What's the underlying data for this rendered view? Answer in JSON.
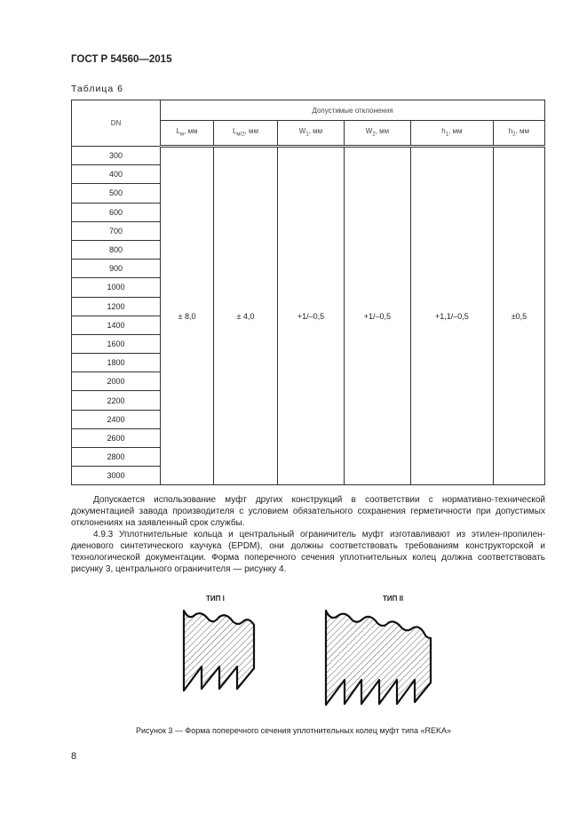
{
  "header": {
    "standard": "ГОСТ Р 54560—2015"
  },
  "table": {
    "caption": "Таблица 6",
    "dn_header": "DN",
    "group_header": "Допустимые отклонения",
    "columns": [
      {
        "symbol": "L",
        "sub": "м",
        "unit": ", мм"
      },
      {
        "symbol": "L",
        "sub": "м/2",
        "unit": ", мм"
      },
      {
        "symbol": "W",
        "sub": "1",
        "unit": ", мм"
      },
      {
        "symbol": "W",
        "sub": "2",
        "unit": ", мм"
      },
      {
        "symbol": "h",
        "sub": "1",
        "unit": ", мм"
      },
      {
        "symbol": "h",
        "sub": "2",
        "unit": ", мм"
      }
    ],
    "dn_values": [
      "300",
      "400",
      "500",
      "600",
      "700",
      "800",
      "900",
      "1000",
      "1200",
      "1400",
      "1600",
      "1800",
      "2000",
      "2200",
      "2400",
      "2600",
      "2800",
      "3000"
    ],
    "tolerances": [
      "± 8,0",
      "± 4,0",
      "+1/–0,5",
      "+1/–0,5",
      "+1,1/–0,5",
      "±0,5"
    ]
  },
  "paragraphs": [
    "Допускается использование муфт других конструкций в соответствии с нормативно-технической документацией завода производителя с условием обязательного сохранения герметичности при допустимых отклонениях на заявленный срок службы.",
    "4.9.3 Уплотнительные кольца и центральный ограничитель муфт изготавливают из этилен-пропилен-диенового синтетического каучука (EPDM), они должны соответствовать требованиям конструкторской и технологической документации. Форма поперечного сечения уплотнительных колец должна соответствовать рисунку 3, центрального ограничителя — рисунку 4."
  ],
  "figure": {
    "type1_label": "ТИП I",
    "type2_label": "ТИП II",
    "caption": "Рисунок 3 — Форма поперечного сечения уплотнительных колец муфт типа «REKA»"
  },
  "page_number": "8"
}
